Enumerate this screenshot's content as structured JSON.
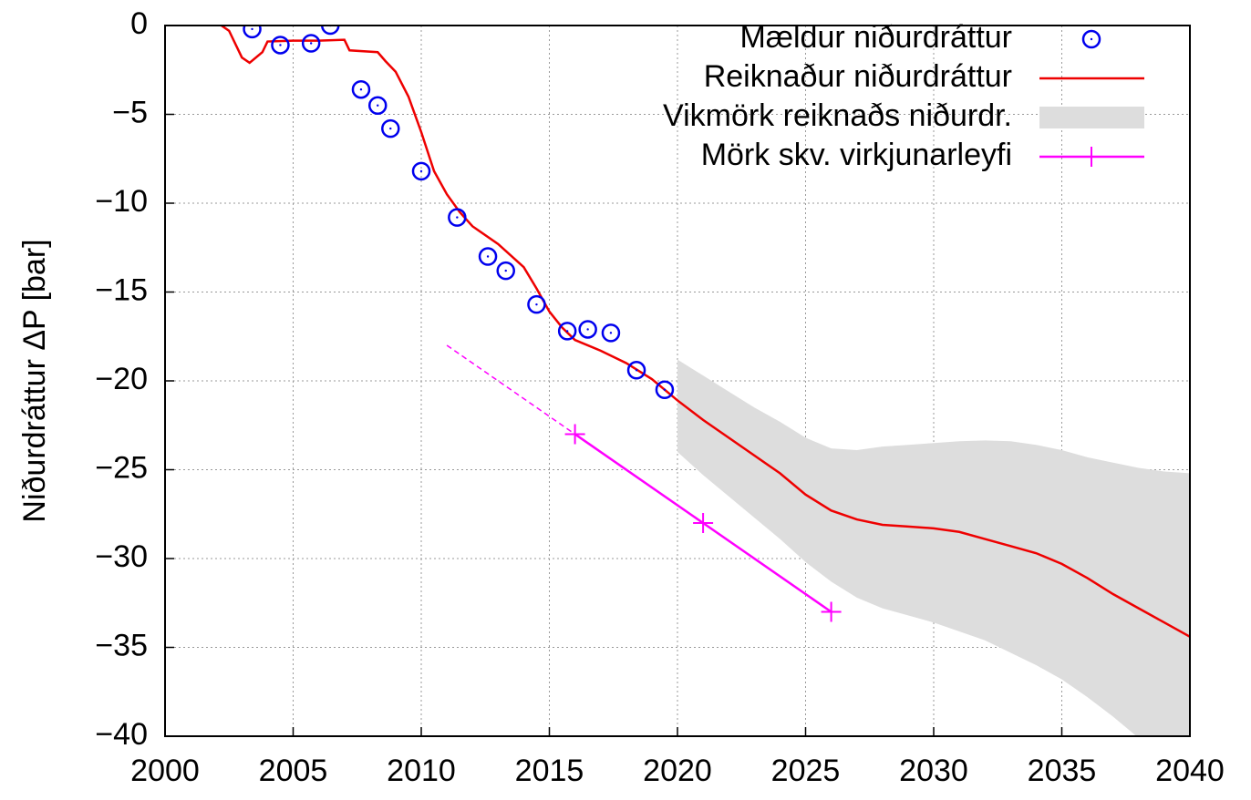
{
  "chart_data": {
    "type": "line",
    "y_label": "Niðurdráttur ΔP [bar]",
    "xlim": [
      2000,
      2040
    ],
    "ylim": [
      -40,
      0
    ],
    "xticks": [
      2000,
      2005,
      2010,
      2015,
      2020,
      2025,
      2030,
      2035,
      2040
    ],
    "yticks": [
      0,
      {
        "value": -5,
        "label": "−5"
      },
      {
        "value": -10,
        "label": "−10"
      },
      {
        "value": -15,
        "label": "−15"
      },
      {
        "value": -20,
        "label": "−20"
      },
      {
        "value": -25,
        "label": "−25"
      },
      {
        "value": -30,
        "label": "−30"
      },
      {
        "value": -35,
        "label": "−35"
      },
      {
        "value": -40,
        "label": "−40"
      }
    ],
    "grid": true,
    "legend": "top-right",
    "series": [
      {
        "name": "Mældur niðurdráttur",
        "color": "#0000ee",
        "kind": "points",
        "marker": "circle",
        "x": [
          2003.4,
          2004.5,
          2005.7,
          2006.45,
          2007.65,
          2008.3,
          2008.8,
          2010.0,
          2011.4,
          2012.6,
          2013.3,
          2014.5,
          2015.7,
          2016.5,
          2017.4,
          2018.4,
          2019.5
        ],
        "values": [
          -0.2,
          -1.1,
          -1.0,
          0.0,
          -3.6,
          -4.5,
          -5.8,
          -8.2,
          -10.8,
          -13.0,
          -13.8,
          -15.7,
          -17.2,
          -17.1,
          -17.3,
          -19.4,
          -20.5
        ]
      },
      {
        "name": "Reiknaður niðurdráttur",
        "color": "#ee0000",
        "kind": "line",
        "x": [
          2002.2,
          2002.5,
          2003.0,
          2003.3,
          2003.8,
          2004.0,
          2005,
          2006,
          2007,
          2007.2,
          2008.3,
          2008.6,
          2009,
          2009.5,
          2010,
          2010.5,
          2011,
          2011.5,
          2012,
          2013,
          2014,
          2014.5,
          2015,
          2015.5,
          2016,
          2017,
          2018,
          2019,
          2020,
          2021,
          2022,
          2023,
          2024,
          2025,
          2026,
          2027,
          2028,
          2029,
          2030,
          2031,
          2032,
          2033,
          2034,
          2035,
          2036,
          2037,
          2038,
          2039,
          2040
        ],
        "values": [
          0,
          -0.3,
          -1.8,
          -2.1,
          -1.5,
          -0.9,
          -0.85,
          -0.85,
          -0.8,
          -1.4,
          -1.5,
          -2.0,
          -2.6,
          -4.0,
          -6.0,
          -8.2,
          -9.5,
          -10.5,
          -11.3,
          -12.3,
          -13.6,
          -14.8,
          -16.1,
          -17.0,
          -17.7,
          -18.3,
          -19.0,
          -19.9,
          -21.1,
          -22.2,
          -23.2,
          -24.2,
          -25.2,
          -26.4,
          -27.3,
          -27.8,
          -28.1,
          -28.2,
          -28.3,
          -28.5,
          -28.9,
          -29.3,
          -29.7,
          -30.3,
          -31.1,
          -32.0,
          -32.8,
          -33.6,
          -34.4
        ]
      },
      {
        "name": "Vikmörk reiknaðs niðurdr.",
        "color": "#dddddd",
        "kind": "band",
        "x": [
          2020,
          2021,
          2022,
          2023,
          2024,
          2025,
          2026,
          2027,
          2028,
          2029,
          2030,
          2031,
          2032,
          2033,
          2034,
          2035,
          2036,
          2037,
          2038,
          2039,
          2040
        ],
        "upper": [
          -18.8,
          -19.7,
          -20.6,
          -21.5,
          -22.3,
          -23.2,
          -23.8,
          -23.9,
          -23.7,
          -23.6,
          -23.5,
          -23.4,
          -23.35,
          -23.4,
          -23.6,
          -23.9,
          -24.3,
          -24.6,
          -24.9,
          -25.1,
          -25.2
        ],
        "lower": [
          -24.0,
          -25.3,
          -26.5,
          -27.7,
          -28.9,
          -30.2,
          -31.3,
          -32.2,
          -32.8,
          -33.2,
          -33.6,
          -34.1,
          -34.6,
          -35.3,
          -36.0,
          -36.8,
          -37.8,
          -38.9,
          -40.1,
          -41.2,
          -42.3
        ]
      },
      {
        "name": "Mörk skv. virkjunarleyfi",
        "color": "#ff00ff",
        "kind": "line",
        "marker": "plus",
        "x": [
          2016,
          2021,
          2026
        ],
        "values": [
          -23,
          -28,
          -33
        ]
      },
      {
        "color": "#ff00ff",
        "kind": "line",
        "dash": true,
        "x": [
          2011,
          2016
        ],
        "values": [
          -18,
          -23
        ]
      }
    ]
  }
}
